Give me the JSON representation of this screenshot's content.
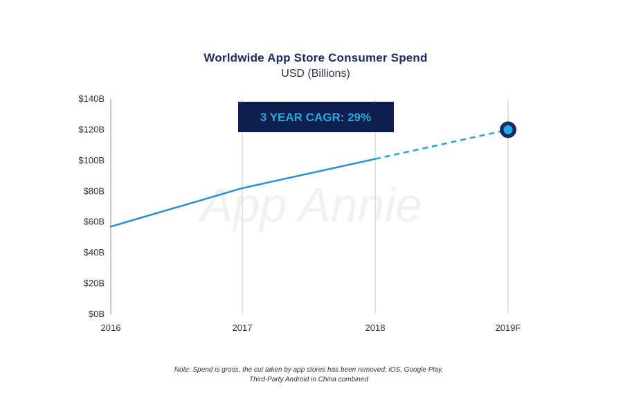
{
  "chart_data": {
    "type": "line",
    "title": "Worldwide App Store Consumer Spend",
    "subtitle": "USD (Billions)",
    "categories": [
      "2016",
      "2017",
      "2018",
      "2019F"
    ],
    "series": [
      {
        "values": [
          57,
          82,
          101,
          120
        ],
        "forecast_from_index": 2
      }
    ],
    "ylim": [
      0,
      140
    ],
    "yticks": [
      0,
      20,
      40,
      60,
      80,
      100,
      120,
      140
    ],
    "ytick_labels": [
      "$0B",
      "$20B",
      "$40B",
      "$60B",
      "$80B",
      "$100B",
      "$120B",
      "$140B"
    ],
    "grid": "vertical",
    "annotation": "3 YEAR CAGR: 29%",
    "watermark": "App Annie",
    "colors": {
      "line": "#2c8ed0",
      "forecast_line": "#2b9fd9",
      "marker_fill": "#1fa9ec",
      "marker_ring": "#1a2a5c",
      "badge_bg": "#0f1f4f",
      "badge_text": "#29a8e0",
      "title": "#1a2a5c"
    }
  },
  "note": {
    "line1": "Note: Spend is gross, the cut taken by app stores has been removed; iOS, Google Play,",
    "line2": "Third-Party Android in China combined"
  }
}
